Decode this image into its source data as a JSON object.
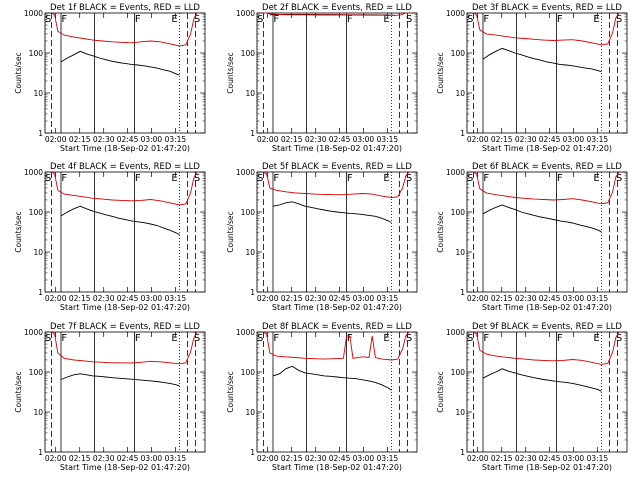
{
  "chart_data": [
    {
      "type": "line",
      "title": "Det 1f BLACK = Events, RED = LLD",
      "xlabel": "Start Time (18-Sep-02 01:47:20)",
      "ylabel": "Counts/sec",
      "yscale": "log",
      "ylim": [
        1,
        1000
      ],
      "y_ticks": [
        "1",
        "10",
        "100",
        "1000"
      ],
      "x_ticks": [
        "02:00",
        "02:15",
        "02:30",
        "02:45",
        "03:00",
        "03:15"
      ],
      "segment_labels": [
        "S",
        "F",
        "F",
        "E",
        "S"
      ],
      "colors": {
        "events": "#000000",
        "lld": "#dd0000"
      },
      "series": [
        {
          "name": "Events",
          "x": [
            0.1,
            0.14,
            0.18,
            0.22,
            0.26,
            0.3,
            0.34,
            0.38,
            0.42,
            0.46,
            0.5,
            0.54,
            0.58,
            0.62,
            0.66,
            0.7,
            0.74,
            0.78,
            0.82,
            0.84
          ],
          "values": [
            60,
            75,
            90,
            110,
            95,
            85,
            75,
            68,
            62,
            58,
            55,
            52,
            50,
            48,
            45,
            42,
            38,
            35,
            30,
            28
          ]
        },
        {
          "name": "LLD",
          "x": [
            0.04,
            0.06,
            0.08,
            0.12,
            0.18,
            0.24,
            0.3,
            0.36,
            0.42,
            0.48,
            0.54,
            0.6,
            0.66,
            0.72,
            0.78,
            0.84,
            0.88,
            0.91,
            0.93,
            0.95
          ],
          "values": [
            1000,
            900,
            350,
            280,
            250,
            230,
            210,
            200,
            190,
            185,
            180,
            190,
            200,
            190,
            170,
            150,
            160,
            300,
            700,
            1000
          ]
        }
      ]
    },
    {
      "type": "line",
      "title": "Det 2f BLACK = Events, RED = LLD",
      "xlabel": "Start Time (18-Sep-02 01:47:20)",
      "ylabel": "Counts/sec",
      "yscale": "log",
      "ylim": [
        1,
        1000
      ],
      "y_ticks": [
        "1",
        "10",
        "100",
        "1000"
      ],
      "x_ticks": [
        "02:00",
        "02:15",
        "02:30",
        "02:45",
        "03:00",
        "03:15"
      ],
      "segment_labels": [
        "S",
        "F",
        "F",
        "E",
        "S"
      ],
      "colors": {
        "events": "#000000",
        "lld": "#dd0000"
      },
      "series": [
        {
          "name": "Events",
          "x": [
            0.08,
            0.18,
            0.28,
            0.38,
            0.48,
            0.58,
            0.68,
            0.78,
            0.86
          ],
          "values": [
            900,
            920,
            920,
            910,
            910,
            900,
            900,
            890,
            880
          ]
        },
        {
          "name": "LLD",
          "x": [
            0.04,
            0.06,
            0.08,
            0.18,
            0.28,
            0.38,
            0.48,
            0.58,
            0.68,
            0.78,
            0.86,
            0.9,
            0.93,
            0.95
          ],
          "values": [
            1000,
            1000,
            950,
            900,
            900,
            890,
            890,
            890,
            880,
            880,
            870,
            900,
            1000,
            1000
          ]
        }
      ]
    },
    {
      "type": "line",
      "title": "Det 3f BLACK = Events, RED = LLD",
      "xlabel": "Start Time (18-Sep-02 01:47:20)",
      "ylabel": "Counts/sec",
      "yscale": "log",
      "ylim": [
        1,
        1000
      ],
      "y_ticks": [
        "1",
        "10",
        "100",
        "1000"
      ],
      "x_ticks": [
        "02:00",
        "02:15",
        "02:30",
        "02:45",
        "03:00",
        "03:15"
      ],
      "segment_labels": [
        "S",
        "F",
        "F",
        "E",
        "S"
      ],
      "colors": {
        "events": "#000000",
        "lld": "#dd0000"
      },
      "series": [
        {
          "name": "Events",
          "x": [
            0.1,
            0.14,
            0.18,
            0.22,
            0.26,
            0.3,
            0.34,
            0.38,
            0.42,
            0.46,
            0.5,
            0.54,
            0.58,
            0.62,
            0.66,
            0.7,
            0.74,
            0.78,
            0.82,
            0.84
          ],
          "values": [
            70,
            90,
            110,
            130,
            115,
            100,
            90,
            80,
            72,
            66,
            60,
            56,
            52,
            50,
            48,
            45,
            42,
            40,
            36,
            34
          ]
        },
        {
          "name": "LLD",
          "x": [
            0.04,
            0.06,
            0.08,
            0.12,
            0.18,
            0.24,
            0.3,
            0.36,
            0.42,
            0.48,
            0.54,
            0.6,
            0.66,
            0.72,
            0.78,
            0.84,
            0.88,
            0.91,
            0.93,
            0.95
          ],
          "values": [
            1000,
            900,
            380,
            300,
            280,
            260,
            240,
            230,
            220,
            210,
            205,
            210,
            215,
            200,
            180,
            160,
            170,
            320,
            750,
            1000
          ]
        }
      ]
    },
    {
      "type": "line",
      "title": "Det 4f BLACK = Events, RED = LLD",
      "xlabel": "Start Time (18-Sep-02 01:47:20)",
      "ylabel": "Counts/sec",
      "yscale": "log",
      "ylim": [
        1,
        1000
      ],
      "y_ticks": [
        "1",
        "10",
        "100",
        "1000"
      ],
      "x_ticks": [
        "02:00",
        "02:15",
        "02:30",
        "02:45",
        "03:00",
        "03:15"
      ],
      "segment_labels": [
        "S",
        "F",
        "F",
        "E",
        "S"
      ],
      "colors": {
        "events": "#000000",
        "lld": "#dd0000"
      },
      "series": [
        {
          "name": "Events",
          "x": [
            0.1,
            0.14,
            0.18,
            0.22,
            0.26,
            0.3,
            0.34,
            0.38,
            0.42,
            0.46,
            0.5,
            0.54,
            0.58,
            0.62,
            0.66,
            0.7,
            0.74,
            0.78,
            0.82,
            0.84
          ],
          "values": [
            80,
            100,
            120,
            140,
            120,
            105,
            95,
            85,
            78,
            70,
            65,
            60,
            57,
            54,
            50,
            46,
            40,
            35,
            30,
            27
          ]
        },
        {
          "name": "LLD",
          "x": [
            0.04,
            0.06,
            0.08,
            0.12,
            0.18,
            0.24,
            0.3,
            0.36,
            0.42,
            0.48,
            0.54,
            0.6,
            0.66,
            0.72,
            0.78,
            0.84,
            0.88,
            0.91,
            0.93,
            0.95
          ],
          "values": [
            1000,
            900,
            350,
            280,
            260,
            240,
            220,
            210,
            200,
            195,
            190,
            195,
            205,
            190,
            170,
            150,
            160,
            300,
            700,
            1000
          ]
        }
      ]
    },
    {
      "type": "line",
      "title": "Det 5f BLACK = Events, RED = LLD",
      "xlabel": "Start Time (18-Sep-02 01:47:20)",
      "ylabel": "Counts/sec",
      "yscale": "log",
      "ylim": [
        1,
        1000
      ],
      "y_ticks": [
        "1",
        "10",
        "100",
        "1000"
      ],
      "x_ticks": [
        "02:00",
        "02:15",
        "02:30",
        "02:45",
        "03:00",
        "03:15"
      ],
      "segment_labels": [
        "S",
        "F",
        "F",
        "E",
        "S"
      ],
      "colors": {
        "events": "#000000",
        "lld": "#dd0000"
      },
      "series": [
        {
          "name": "Events",
          "x": [
            0.1,
            0.14,
            0.18,
            0.22,
            0.26,
            0.3,
            0.34,
            0.38,
            0.42,
            0.46,
            0.5,
            0.54,
            0.58,
            0.62,
            0.66,
            0.7,
            0.74,
            0.78,
            0.82,
            0.84
          ],
          "values": [
            140,
            150,
            170,
            180,
            160,
            140,
            130,
            120,
            112,
            105,
            100,
            96,
            92,
            90,
            86,
            82,
            78,
            70,
            60,
            55
          ]
        },
        {
          "name": "LLD",
          "x": [
            0.04,
            0.06,
            0.08,
            0.12,
            0.18,
            0.24,
            0.3,
            0.36,
            0.42,
            0.48,
            0.54,
            0.6,
            0.66,
            0.72,
            0.78,
            0.84,
            0.88,
            0.91,
            0.93,
            0.95
          ],
          "values": [
            1000,
            900,
            400,
            350,
            320,
            300,
            290,
            280,
            275,
            270,
            270,
            280,
            290,
            280,
            250,
            230,
            240,
            400,
            800,
            1000
          ]
        }
      ]
    },
    {
      "type": "line",
      "title": "Det 6f BLACK = Events, RED = LLD",
      "xlabel": "Start Time (18-Sep-02 01:47:20)",
      "ylabel": "Counts/sec",
      "yscale": "log",
      "ylim": [
        1,
        1000
      ],
      "y_ticks": [
        "1",
        "10",
        "100",
        "1000"
      ],
      "x_ticks": [
        "02:00",
        "02:15",
        "02:30",
        "02:45",
        "03:00",
        "03:15"
      ],
      "segment_labels": [
        "S",
        "F",
        "F",
        "E",
        "S"
      ],
      "colors": {
        "events": "#000000",
        "lld": "#dd0000"
      },
      "series": [
        {
          "name": "Events",
          "x": [
            0.1,
            0.14,
            0.18,
            0.22,
            0.26,
            0.3,
            0.34,
            0.38,
            0.42,
            0.46,
            0.5,
            0.54,
            0.58,
            0.62,
            0.66,
            0.7,
            0.74,
            0.78,
            0.82,
            0.84
          ],
          "values": [
            90,
            110,
            130,
            150,
            130,
            115,
            100,
            90,
            82,
            75,
            70,
            65,
            60,
            57,
            53,
            48,
            44,
            40,
            35,
            32
          ]
        },
        {
          "name": "LLD",
          "x": [
            0.04,
            0.06,
            0.08,
            0.12,
            0.18,
            0.24,
            0.3,
            0.36,
            0.42,
            0.48,
            0.54,
            0.6,
            0.66,
            0.72,
            0.78,
            0.84,
            0.88,
            0.91,
            0.93,
            0.95
          ],
          "values": [
            1000,
            900,
            380,
            300,
            270,
            250,
            230,
            220,
            210,
            205,
            200,
            205,
            215,
            200,
            180,
            160,
            170,
            320,
            750,
            1000
          ]
        }
      ]
    },
    {
      "type": "line",
      "title": "Det 7f BLACK = Events, RED = LLD",
      "xlabel": "Start Time (18-Sep-02 01:47:20)",
      "ylabel": "Counts/sec",
      "yscale": "log",
      "ylim": [
        1,
        1000
      ],
      "y_ticks": [
        "1",
        "10",
        "100",
        "1000"
      ],
      "x_ticks": [
        "02:00",
        "02:15",
        "02:30",
        "02:45",
        "03:00",
        "03:15"
      ],
      "segment_labels": [
        "S",
        "F",
        "F",
        "E",
        "S"
      ],
      "colors": {
        "events": "#000000",
        "lld": "#dd0000"
      },
      "series": [
        {
          "name": "Events",
          "x": [
            0.1,
            0.14,
            0.18,
            0.22,
            0.26,
            0.3,
            0.34,
            0.38,
            0.42,
            0.46,
            0.5,
            0.54,
            0.58,
            0.62,
            0.66,
            0.7,
            0.74,
            0.78,
            0.82,
            0.84
          ],
          "values": [
            65,
            75,
            85,
            90,
            85,
            80,
            78,
            75,
            72,
            70,
            68,
            66,
            64,
            62,
            60,
            58,
            55,
            52,
            48,
            45
          ]
        },
        {
          "name": "LLD",
          "x": [
            0.04,
            0.06,
            0.08,
            0.12,
            0.18,
            0.24,
            0.3,
            0.36,
            0.42,
            0.48,
            0.54,
            0.6,
            0.66,
            0.72,
            0.78,
            0.84,
            0.88,
            0.91,
            0.93,
            0.95
          ],
          "values": [
            1000,
            900,
            300,
            220,
            200,
            190,
            180,
            175,
            170,
            170,
            168,
            175,
            185,
            180,
            170,
            160,
            170,
            320,
            700,
            1000
          ]
        }
      ]
    },
    {
      "type": "line",
      "title": "Det 8f BLACK = Events, RED = LLD",
      "xlabel": "Start Time (18-Sep-02 01:47:20)",
      "ylabel": "Counts/sec",
      "yscale": "log",
      "ylim": [
        1,
        1000
      ],
      "y_ticks": [
        "1",
        "10",
        "100",
        "1000"
      ],
      "x_ticks": [
        "02:00",
        "02:15",
        "02:30",
        "02:45",
        "03:00",
        "03:15"
      ],
      "segment_labels": [
        "S",
        "F",
        "F",
        "E",
        "S"
      ],
      "colors": {
        "events": "#000000",
        "lld": "#dd0000"
      },
      "series": [
        {
          "name": "Events",
          "x": [
            0.1,
            0.14,
            0.18,
            0.22,
            0.26,
            0.3,
            0.34,
            0.38,
            0.42,
            0.46,
            0.5,
            0.54,
            0.58,
            0.62,
            0.66,
            0.7,
            0.74,
            0.78,
            0.82,
            0.84
          ],
          "values": [
            80,
            90,
            120,
            140,
            110,
            95,
            90,
            85,
            80,
            78,
            75,
            72,
            70,
            68,
            64,
            60,
            55,
            48,
            40,
            35
          ]
        },
        {
          "name": "LLD",
          "x": [
            0.04,
            0.06,
            0.08,
            0.12,
            0.18,
            0.24,
            0.3,
            0.36,
            0.42,
            0.48,
            0.54,
            0.56,
            0.58,
            0.6,
            0.66,
            0.7,
            0.72,
            0.74,
            0.78,
            0.84,
            0.88,
            0.91,
            0.93,
            0.95
          ],
          "values": [
            1000,
            900,
            300,
            250,
            240,
            230,
            220,
            215,
            210,
            215,
            220,
            800,
            800,
            220,
            240,
            230,
            800,
            230,
            210,
            200,
            210,
            380,
            800,
            1000
          ]
        }
      ]
    },
    {
      "type": "line",
      "title": "Det 9f BLACK = Events, RED = LLD",
      "xlabel": "Start Time (18-Sep-02 01:47:20)",
      "ylabel": "Counts/sec",
      "yscale": "log",
      "ylim": [
        1,
        1000
      ],
      "y_ticks": [
        "1",
        "10",
        "100",
        "1000"
      ],
      "x_ticks": [
        "02:00",
        "02:15",
        "02:30",
        "02:45",
        "03:00",
        "03:15"
      ],
      "segment_labels": [
        "S",
        "F",
        "F",
        "E",
        "S"
      ],
      "colors": {
        "events": "#000000",
        "lld": "#dd0000"
      },
      "series": [
        {
          "name": "Events",
          "x": [
            0.1,
            0.14,
            0.18,
            0.22,
            0.26,
            0.3,
            0.34,
            0.38,
            0.42,
            0.46,
            0.5,
            0.54,
            0.58,
            0.62,
            0.66,
            0.7,
            0.74,
            0.78,
            0.82,
            0.84
          ],
          "values": [
            70,
            85,
            100,
            120,
            105,
            95,
            85,
            78,
            72,
            67,
            63,
            60,
            57,
            55,
            52,
            48,
            44,
            40,
            36,
            33
          ]
        },
        {
          "name": "LLD",
          "x": [
            0.04,
            0.06,
            0.08,
            0.12,
            0.18,
            0.24,
            0.3,
            0.36,
            0.42,
            0.48,
            0.54,
            0.6,
            0.66,
            0.72,
            0.78,
            0.84,
            0.88,
            0.91,
            0.93,
            0.95
          ],
          "values": [
            1000,
            900,
            350,
            280,
            250,
            235,
            220,
            210,
            200,
            195,
            190,
            195,
            205,
            195,
            175,
            155,
            165,
            310,
            720,
            1000
          ]
        }
      ]
    }
  ]
}
